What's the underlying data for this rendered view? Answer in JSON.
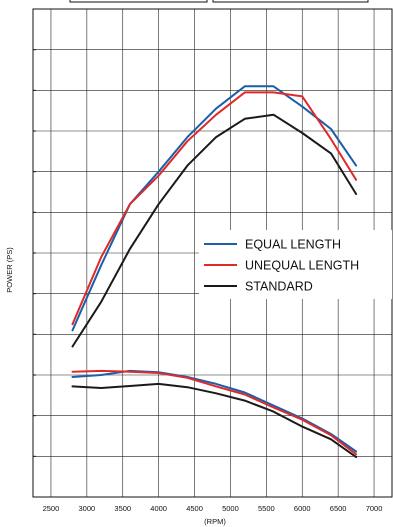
{
  "chart_data": {
    "type": "line",
    "title": "",
    "xlabel": "(RPM)",
    "ylabel": "POWER (PS)",
    "xlim": [
      2250,
      7250
    ],
    "x_ticks": [
      2500,
      3000,
      3500,
      4000,
      4500,
      5000,
      5500,
      6000,
      6500,
      7000
    ],
    "x_tick_labels": [
      "2500",
      "3000",
      "3500",
      "4000",
      "4500",
      "5000",
      "5500",
      "6000",
      "6500",
      "7000"
    ],
    "ylim": [
      0,
      12
    ],
    "y_y_grid_count": 12,
    "y_tick_labels_visible": false,
    "grid": true,
    "legend": {
      "position": "right",
      "entries": [
        {
          "label": "EQUAL LENGTH",
          "color": "#1a5fa8"
        },
        {
          "label": "UNEQUAL LENGTH",
          "color": "#e02a2a"
        },
        {
          "label": "STANDARD",
          "color": "#1a1a1a"
        }
      ]
    },
    "series": [
      {
        "name": "EQUAL LENGTH",
        "color": "#1a5fa8",
        "group": "power",
        "points": [
          [
            2800,
            4.1
          ],
          [
            3200,
            5.7
          ],
          [
            3600,
            7.2
          ],
          [
            4000,
            8.0
          ],
          [
            4400,
            8.85
          ],
          [
            4800,
            9.55
          ],
          [
            5200,
            10.1
          ],
          [
            5600,
            10.1
          ],
          [
            6000,
            9.6
          ],
          [
            6400,
            9.05
          ],
          [
            6750,
            8.15
          ]
        ]
      },
      {
        "name": "UNEQUAL LENGTH",
        "color": "#e02a2a",
        "group": "power",
        "points": [
          [
            2800,
            4.25
          ],
          [
            3200,
            5.9
          ],
          [
            3600,
            7.2
          ],
          [
            4000,
            7.9
          ],
          [
            4400,
            8.75
          ],
          [
            4800,
            9.4
          ],
          [
            5200,
            9.95
          ],
          [
            5600,
            9.95
          ],
          [
            6000,
            9.85
          ],
          [
            6400,
            8.8
          ],
          [
            6750,
            7.8
          ]
        ]
      },
      {
        "name": "STANDARD",
        "color": "#1a1a1a",
        "group": "power",
        "points": [
          [
            2800,
            3.7
          ],
          [
            3200,
            4.8
          ],
          [
            3600,
            6.1
          ],
          [
            4000,
            7.2
          ],
          [
            4400,
            8.15
          ],
          [
            4800,
            8.85
          ],
          [
            5200,
            9.3
          ],
          [
            5600,
            9.4
          ],
          [
            6000,
            8.95
          ],
          [
            6400,
            8.45
          ],
          [
            6750,
            7.45
          ]
        ]
      },
      {
        "name": "EQUAL LENGTH",
        "color": "#1a5fa8",
        "group": "torque",
        "points": [
          [
            2800,
            2.95
          ],
          [
            3200,
            3.0
          ],
          [
            3600,
            3.1
          ],
          [
            4000,
            3.07
          ],
          [
            4400,
            2.95
          ],
          [
            4800,
            2.78
          ],
          [
            5200,
            2.57
          ],
          [
            5600,
            2.25
          ],
          [
            6000,
            1.93
          ],
          [
            6400,
            1.55
          ],
          [
            6750,
            1.12
          ]
        ]
      },
      {
        "name": "UNEQUAL LENGTH",
        "color": "#e02a2a",
        "group": "torque",
        "points": [
          [
            2800,
            3.08
          ],
          [
            3200,
            3.1
          ],
          [
            3600,
            3.08
          ],
          [
            4000,
            3.05
          ],
          [
            4400,
            2.93
          ],
          [
            4800,
            2.72
          ],
          [
            5200,
            2.52
          ],
          [
            5600,
            2.2
          ],
          [
            6000,
            1.9
          ],
          [
            6400,
            1.52
          ],
          [
            6750,
            1.05
          ]
        ]
      },
      {
        "name": "STANDARD",
        "color": "#1a1a1a",
        "group": "torque",
        "points": [
          [
            2800,
            2.72
          ],
          [
            3200,
            2.68
          ],
          [
            3600,
            2.73
          ],
          [
            4000,
            2.78
          ],
          [
            4400,
            2.7
          ],
          [
            4800,
            2.55
          ],
          [
            5200,
            2.37
          ],
          [
            5600,
            2.1
          ],
          [
            6000,
            1.73
          ],
          [
            6400,
            1.42
          ],
          [
            6750,
            0.98
          ]
        ]
      }
    ]
  }
}
